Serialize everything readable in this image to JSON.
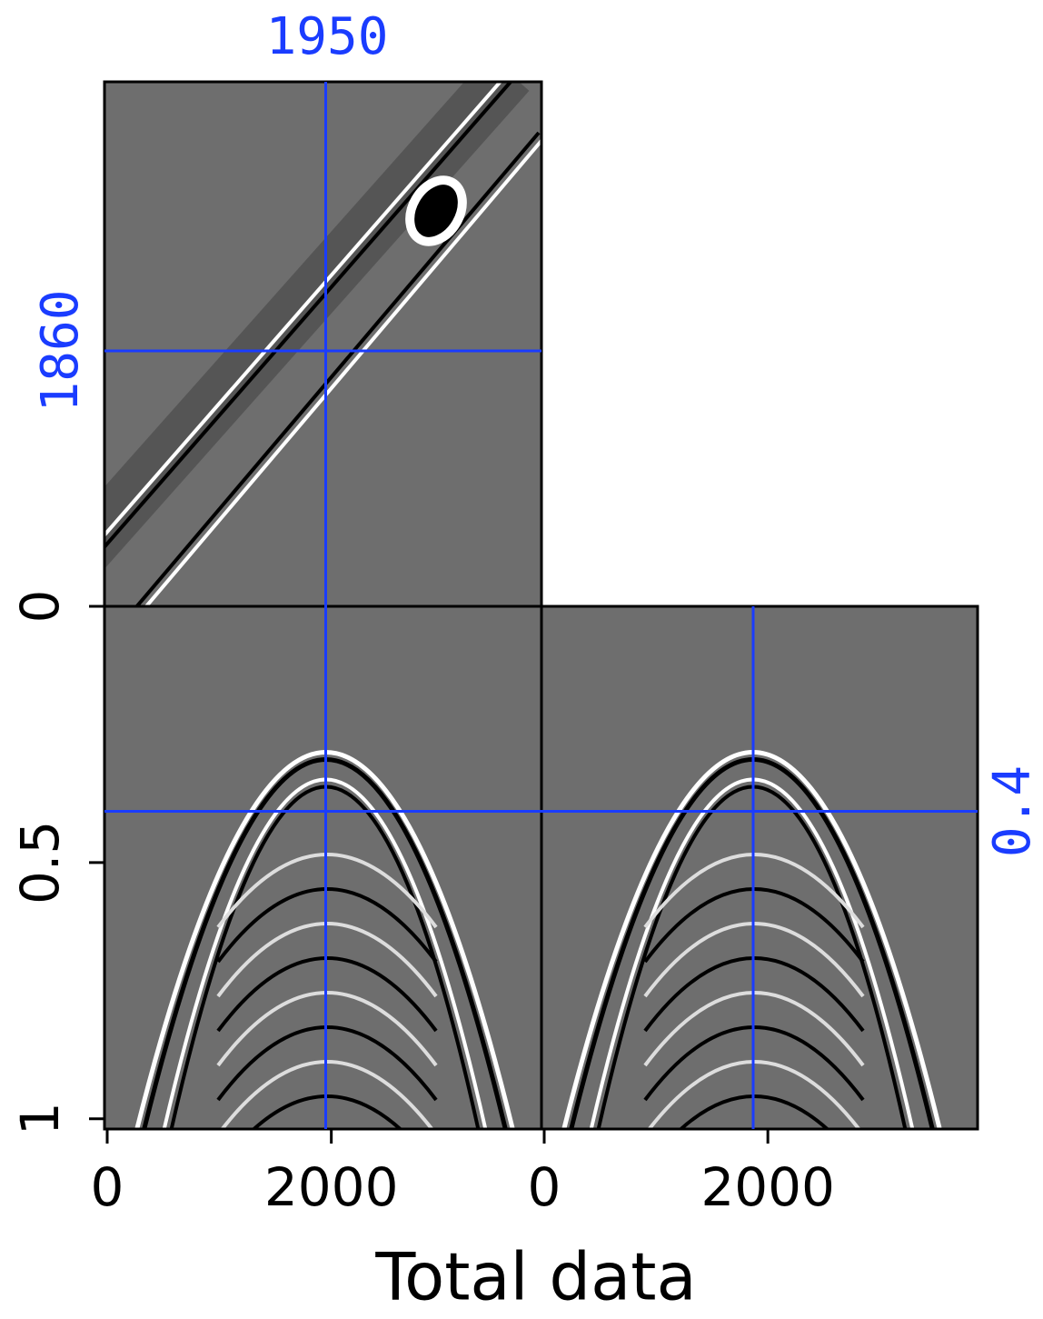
{
  "xlabel": "Total data",
  "panels": [
    {
      "xlim": [
        0,
        3900
      ],
      "xticks": [
        0,
        2000
      ]
    },
    {
      "xlim": [
        0,
        3900
      ],
      "xticks": [
        0,
        2000
      ]
    }
  ],
  "ylim": [
    0,
    1.02
  ],
  "yticks": [
    0,
    0.5,
    1
  ],
  "crosshair": {
    "x": 1950,
    "x_label": "1950",
    "y_top_label": "1860",
    "t": 0.4,
    "t_label": "0.4"
  }
}
